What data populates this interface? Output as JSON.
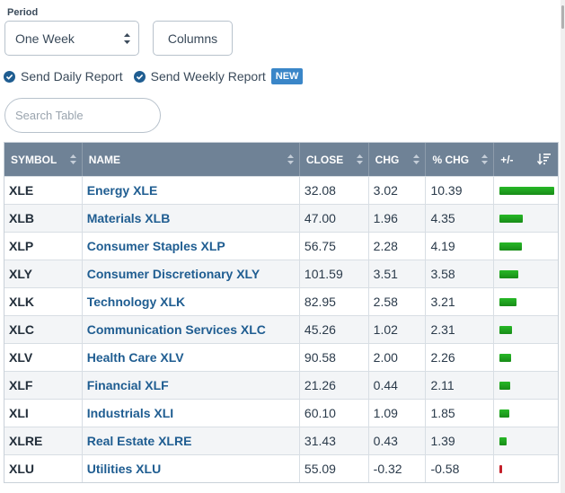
{
  "period": {
    "label": "Period",
    "selected": "One Week"
  },
  "columns_button": "Columns",
  "reports": {
    "daily": "Send Daily Report",
    "weekly": "Send Weekly Report",
    "new_badge": "NEW"
  },
  "search": {
    "placeholder": "Search Table",
    "value": ""
  },
  "table": {
    "headers": [
      "SYMBOL",
      "NAME",
      "CLOSE",
      "CHG",
      "% CHG",
      "+/-"
    ],
    "rows": [
      {
        "symbol": "XLE",
        "name": "Energy XLE",
        "close": "32.08",
        "chg": "3.02",
        "pct": "10.39",
        "pct_value": 10.39
      },
      {
        "symbol": "XLB",
        "name": "Materials XLB",
        "close": "47.00",
        "chg": "1.96",
        "pct": "4.35",
        "pct_value": 4.35
      },
      {
        "symbol": "XLP",
        "name": "Consumer Staples XLP",
        "close": "56.75",
        "chg": "2.28",
        "pct": "4.19",
        "pct_value": 4.19
      },
      {
        "symbol": "XLY",
        "name": "Consumer Discretionary XLY",
        "close": "101.59",
        "chg": "3.51",
        "pct": "3.58",
        "pct_value": 3.58
      },
      {
        "symbol": "XLK",
        "name": "Technology XLK",
        "close": "82.95",
        "chg": "2.58",
        "pct": "3.21",
        "pct_value": 3.21
      },
      {
        "symbol": "XLC",
        "name": "Communication Services XLC",
        "close": "45.26",
        "chg": "1.02",
        "pct": "2.31",
        "pct_value": 2.31
      },
      {
        "symbol": "XLV",
        "name": "Health Care XLV",
        "close": "90.58",
        "chg": "2.00",
        "pct": "2.26",
        "pct_value": 2.26
      },
      {
        "symbol": "XLF",
        "name": "Financial XLF",
        "close": "21.26",
        "chg": "0.44",
        "pct": "2.11",
        "pct_value": 2.11
      },
      {
        "symbol": "XLI",
        "name": "Industrials XLI",
        "close": "60.10",
        "chg": "1.09",
        "pct": "1.85",
        "pct_value": 1.85
      },
      {
        "symbol": "XLRE",
        "name": "Real Estate XLRE",
        "close": "31.43",
        "chg": "0.43",
        "pct": "1.39",
        "pct_value": 1.39
      },
      {
        "symbol": "XLU",
        "name": "Utilities XLU",
        "close": "55.09",
        "chg": "-0.32",
        "pct": "-0.58",
        "pct_value": -0.58
      }
    ]
  },
  "colors": {
    "header_bg": "#6f8296",
    "link": "#1f5d91",
    "bar_positive": "#1fa51f",
    "bar_negative": "#c4202a",
    "badge": "#3a86c8"
  },
  "icons": [
    "chevron-updown-icon",
    "check-circle-icon",
    "sort-arrows-icon",
    "sort-descending-icon"
  ]
}
